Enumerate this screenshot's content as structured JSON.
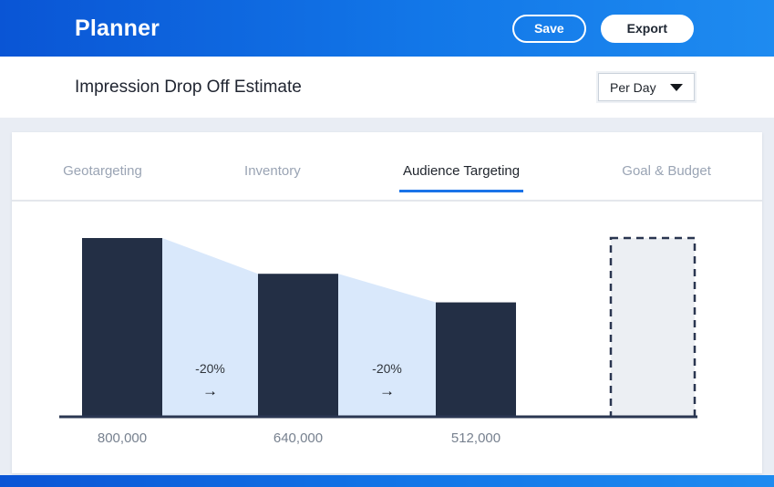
{
  "header": {
    "title": "Planner",
    "save_label": "Save",
    "export_label": "Export"
  },
  "subheader": {
    "title": "Impression Drop Off Estimate",
    "dropdown_value": "Per Day"
  },
  "tabs": [
    {
      "label": "Geotargeting",
      "active": false
    },
    {
      "label": "Inventory",
      "active": false
    },
    {
      "label": "Audience Targeting",
      "active": true
    },
    {
      "label": "Goal & Budget",
      "active": false
    }
  ],
  "chart_data": {
    "type": "bar",
    "subtype": "funnel-drop-off",
    "categories": [
      "800,000",
      "640,000",
      "512,000"
    ],
    "values": [
      800000,
      640000,
      512000
    ],
    "drops": [
      {
        "label": "-20%",
        "arrow": "→"
      },
      {
        "label": "-20%",
        "arrow": "→"
      }
    ],
    "placeholder_bar": true,
    "legend": "none",
    "grid": false,
    "colors": {
      "bar": "#232f45",
      "drop_fill": "#d9e8fb",
      "axis": "#2b3752",
      "placeholder_fill": "#eceff3",
      "placeholder_border": "#2a3650"
    }
  }
}
